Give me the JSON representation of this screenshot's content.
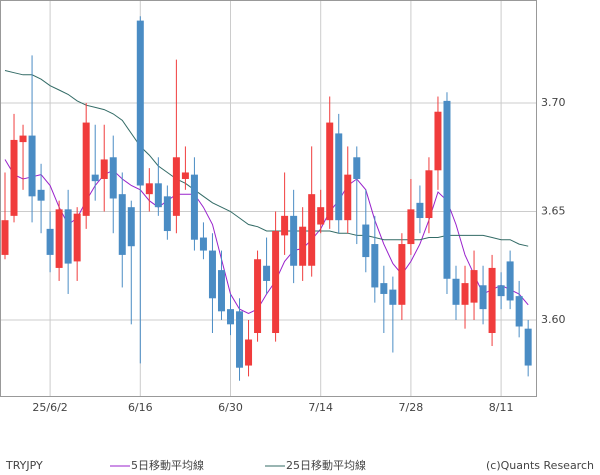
{
  "chart_data": {
    "type": "candlestick",
    "symbol": "TRYJPY",
    "credit": "(c)Quants Research",
    "categories": [
      null,
      null,
      null,
      null,
      null,
      "25/6/2",
      null,
      null,
      null,
      null,
      null,
      null,
      null,
      null,
      null,
      "6/16",
      null,
      null,
      null,
      null,
      null,
      null,
      null,
      null,
      null,
      "6/30",
      null,
      null,
      null,
      null,
      null,
      null,
      null,
      null,
      null,
      "7/14",
      null,
      null,
      null,
      null,
      null,
      null,
      null,
      null,
      null,
      "7/28",
      null,
      null,
      null,
      null,
      null,
      null,
      null,
      null,
      null,
      "8/11",
      null,
      null,
      null
    ],
    "ohlc": {
      "open": [
        3.63,
        3.648,
        3.682,
        3.685,
        3.66,
        3.642,
        3.624,
        3.651,
        3.627,
        3.648,
        3.667,
        3.665,
        3.675,
        3.658,
        3.652,
        3.738,
        3.658,
        3.663,
        3.657,
        3.648,
        3.665,
        3.667,
        3.638,
        3.632,
        3.623,
        3.605,
        3.604,
        3.579,
        3.594,
        3.625,
        3.594,
        3.639,
        3.648,
        3.625,
        3.625,
        3.644,
        3.646,
        3.686,
        3.646,
        3.675,
        3.644,
        3.635,
        3.617,
        3.614,
        3.607,
        3.635,
        3.654,
        3.647,
        3.669,
        3.701,
        3.619,
        3.607,
        3.608,
        3.616,
        3.594,
        3.616,
        3.627,
        3.611,
        3.596
      ],
      "high": [
        3.668,
        3.695,
        3.69,
        3.722,
        3.672,
        3.65,
        3.655,
        3.66,
        3.652,
        3.7,
        3.69,
        3.69,
        3.685,
        3.668,
        3.655,
        3.74,
        3.67,
        3.675,
        3.662,
        3.72,
        3.68,
        3.675,
        3.645,
        3.64,
        3.632,
        3.612,
        3.61,
        3.6,
        3.632,
        3.638,
        3.65,
        3.668,
        3.66,
        3.652,
        3.68,
        3.66,
        3.703,
        3.695,
        3.68,
        3.68,
        3.66,
        3.648,
        3.625,
        3.62,
        3.64,
        3.665,
        3.662,
        3.675,
        3.703,
        3.705,
        3.625,
        3.625,
        3.632,
        3.625,
        3.63,
        3.622,
        3.632,
        3.618,
        3.6
      ],
      "low": [
        3.628,
        3.645,
        3.66,
        3.645,
        3.64,
        3.622,
        3.618,
        3.612,
        3.618,
        3.642,
        3.655,
        3.65,
        3.64,
        3.615,
        3.598,
        3.58,
        3.65,
        3.648,
        3.637,
        3.64,
        3.66,
        3.632,
        3.628,
        3.594,
        3.6,
        3.593,
        3.572,
        3.574,
        3.59,
        3.612,
        3.59,
        3.63,
        3.617,
        3.618,
        3.62,
        3.64,
        3.642,
        3.64,
        3.64,
        3.635,
        3.622,
        3.608,
        3.594,
        3.585,
        3.6,
        3.63,
        3.64,
        3.64,
        3.66,
        3.612,
        3.6,
        3.596,
        3.6,
        3.598,
        3.588,
        3.605,
        3.605,
        3.592,
        3.574
      ],
      "close": [
        3.646,
        3.683,
        3.685,
        3.657,
        3.655,
        3.63,
        3.651,
        3.626,
        3.649,
        3.691,
        3.664,
        3.674,
        3.656,
        3.63,
        3.634,
        3.662,
        3.663,
        3.652,
        3.641,
        3.675,
        3.668,
        3.637,
        3.632,
        3.61,
        3.604,
        3.598,
        3.578,
        3.591,
        3.628,
        3.618,
        3.641,
        3.648,
        3.625,
        3.643,
        3.658,
        3.652,
        3.691,
        3.646,
        3.667,
        3.665,
        3.629,
        3.615,
        3.612,
        3.607,
        3.635,
        3.651,
        3.647,
        3.669,
        3.696,
        3.619,
        3.607,
        3.617,
        3.623,
        3.605,
        3.624,
        3.611,
        3.609,
        3.597,
        3.579
      ]
    },
    "up_color": "#f03c3c",
    "down_color": "#4a8cc4",
    "series": [
      {
        "name": "5日移動平均線",
        "color": "#9922cc",
        "values": [
          3.674,
          3.667,
          3.665,
          3.666,
          3.667,
          3.662,
          3.652,
          3.644,
          3.647,
          3.655,
          3.662,
          3.667,
          3.669,
          3.665,
          3.662,
          3.66,
          3.655,
          3.652,
          3.655,
          3.658,
          3.658,
          3.658,
          3.652,
          3.644,
          3.628,
          3.612,
          3.605,
          3.603,
          3.605,
          3.612,
          3.618,
          3.627,
          3.632,
          3.633,
          3.637,
          3.642,
          3.65,
          3.655,
          3.662,
          3.665,
          3.66,
          3.646,
          3.635,
          3.626,
          3.621,
          3.627,
          3.635,
          3.646,
          3.659,
          3.655,
          3.644,
          3.63,
          3.621,
          3.612,
          3.614,
          3.616,
          3.614,
          3.612,
          3.607
        ]
      },
      {
        "name": "25日移動平均線",
        "color": "#336b66",
        "values": [
          3.715,
          3.714,
          3.713,
          3.713,
          3.711,
          3.708,
          3.706,
          3.704,
          3.701,
          3.699,
          3.698,
          3.697,
          3.695,
          3.692,
          3.686,
          3.68,
          3.676,
          3.671,
          3.668,
          3.665,
          3.663,
          3.66,
          3.657,
          3.654,
          3.652,
          3.65,
          3.647,
          3.644,
          3.643,
          3.641,
          3.641,
          3.641,
          3.641,
          3.641,
          3.641,
          3.641,
          3.641,
          3.64,
          3.64,
          3.639,
          3.639,
          3.638,
          3.637,
          3.637,
          3.637,
          3.637,
          3.637,
          3.638,
          3.638,
          3.639,
          3.639,
          3.639,
          3.639,
          3.639,
          3.638,
          3.637,
          3.637,
          3.635,
          3.634
        ]
      }
    ],
    "ylim": [
      3.5645,
      3.7475
    ],
    "yticks": [
      {
        "value": 3.6,
        "label": "3.60"
      },
      {
        "value": 3.65,
        "label": "3.65"
      },
      {
        "value": 3.7,
        "label": "3.70"
      }
    ],
    "grid": true
  }
}
